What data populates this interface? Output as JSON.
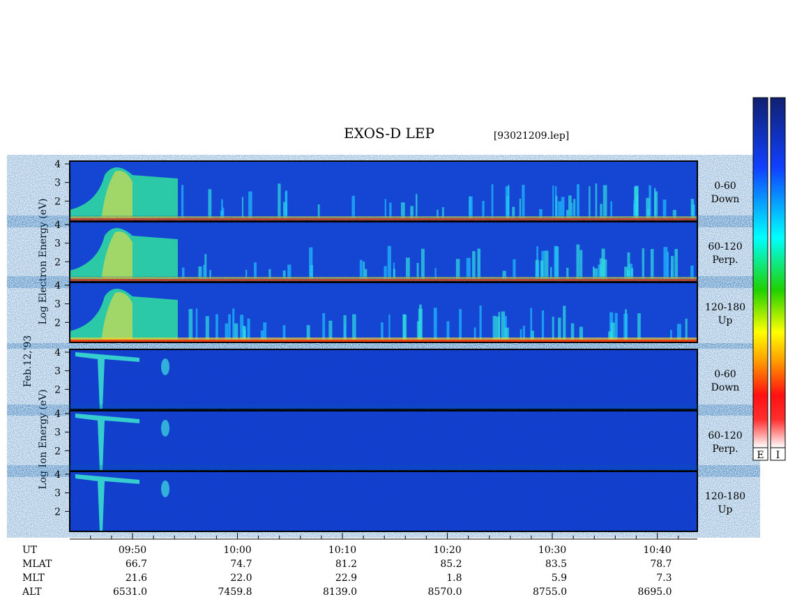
{
  "title": "EXOS-D LEP",
  "file": "[93021209.lep]",
  "date": "Feb.12,'93",
  "electron_axis_label": "Log Electron Energy (eV)",
  "ion_axis_label": "Log Ion Energy (eV)",
  "yticks": [
    2,
    3,
    4
  ],
  "panels": [
    {
      "angle": "0-60",
      "direction": "Down"
    },
    {
      "angle": "60-120",
      "direction": "Perp."
    },
    {
      "angle": "120-180",
      "direction": "Up"
    },
    {
      "angle": "0-60",
      "direction": "Down"
    },
    {
      "angle": "60-120",
      "direction": "Perp."
    },
    {
      "angle": "120-180",
      "direction": "Up"
    }
  ],
  "time_ticks": [
    "09:50",
    "10:00",
    "10:10",
    "10:20",
    "10:30",
    "10:40"
  ],
  "ephemeris": {
    "ut_label": "UT",
    "rows": [
      {
        "name": "MLAT",
        "values": [
          "66.7",
          "74.7",
          "81.2",
          "85.2",
          "83.5",
          "78.7"
        ]
      },
      {
        "name": "MLT",
        "values": [
          "21.6",
          "22.0",
          "22.9",
          "1.8",
          "5.9",
          "7.3"
        ]
      },
      {
        "name": "ALT",
        "values": [
          "6531.0",
          "7459.8",
          "8139.0",
          "8570.0",
          "8755.0",
          "8695.0"
        ]
      }
    ]
  },
  "colorbars": [
    "E",
    "I"
  ]
}
